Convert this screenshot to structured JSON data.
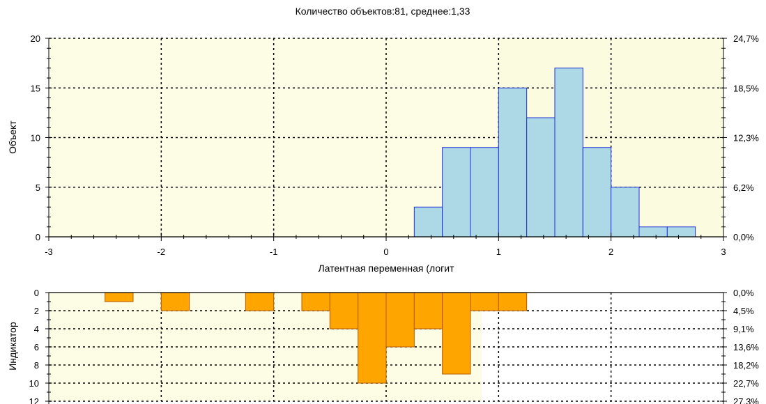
{
  "chart_data": [
    {
      "type": "bar",
      "title": "Количество объектов:81, среднее:1,33",
      "xlabel": "Латентная переменная (логит",
      "ylabel": "Объект",
      "xlim": [
        -3,
        3
      ],
      "ylim": [
        0,
        20
      ],
      "x_ticks": [
        "-3",
        "-2",
        "-1",
        "0",
        "1",
        "2",
        "3"
      ],
      "y_ticks": [
        "0",
        "5",
        "10",
        "15",
        "20"
      ],
      "y2_ticks": [
        "0,0%",
        "6,2%",
        "12,3%",
        "18,5%",
        "24,7%"
      ],
      "grid": true,
      "bin_width": 0.25,
      "bins": [
        {
          "x": 0.25,
          "value": 3
        },
        {
          "x": 0.5,
          "value": 9
        },
        {
          "x": 0.75,
          "value": 9
        },
        {
          "x": 1.0,
          "value": 15
        },
        {
          "x": 1.25,
          "value": 12
        },
        {
          "x": 1.5,
          "value": 17
        },
        {
          "x": 1.75,
          "value": 9
        },
        {
          "x": 2.0,
          "value": 5
        },
        {
          "x": 2.25,
          "value": 1
        },
        {
          "x": 2.5,
          "value": 1
        }
      ],
      "colors": {
        "bar_fill": "#add8e6",
        "bar_stroke": "#1f2fd8",
        "shade": "#fdfde6",
        "shade_strong": "#fbfbe0"
      }
    },
    {
      "type": "bar",
      "ylabel": "Индикатор",
      "xlim": [
        -3,
        3
      ],
      "ylim": [
        0,
        12
      ],
      "inverted": true,
      "y_ticks": [
        "0",
        "2",
        "4",
        "6",
        "8",
        "10",
        "12"
      ],
      "y2_ticks": [
        "0,0%",
        "4,5%",
        "9,1%",
        "13,6%",
        "18,2%",
        "22,7%",
        "27,3%"
      ],
      "grid": true,
      "bin_width": 0.25,
      "bins": [
        {
          "x": -2.5,
          "value": 1
        },
        {
          "x": -2.0,
          "value": 2
        },
        {
          "x": -1.25,
          "value": 2
        },
        {
          "x": -0.75,
          "value": 2
        },
        {
          "x": -0.5,
          "value": 4
        },
        {
          "x": -0.25,
          "value": 10
        },
        {
          "x": 0.0,
          "value": 6
        },
        {
          "x": 0.25,
          "value": 4
        },
        {
          "x": 0.5,
          "value": 9
        },
        {
          "x": 0.75,
          "value": 2
        },
        {
          "x": 1.0,
          "value": 2
        }
      ],
      "colors": {
        "bar_fill": "#ffa500",
        "bar_stroke": "#b35a00",
        "shade": "#fdfde6"
      }
    }
  ]
}
